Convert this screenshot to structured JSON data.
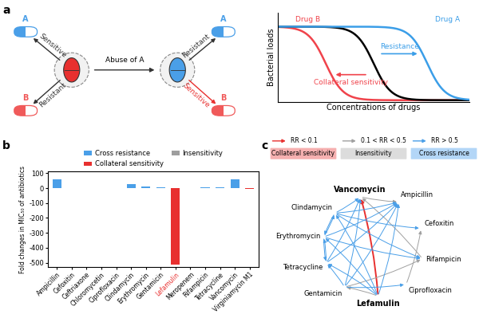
{
  "panel_labels": [
    "a",
    "b",
    "c"
  ],
  "panel_a": {
    "drugs": [
      {
        "name": "A",
        "color": "#4a9fe8"
      },
      {
        "name": "B",
        "color": "#f05a5a"
      }
    ],
    "before": {
      "cell_color": "#e8302f",
      "responses": [
        "Sensitive",
        "Resistant"
      ],
      "arrow_colors": [
        "#333333",
        "#333333"
      ]
    },
    "abuse": "Abuse of A",
    "after": {
      "cell_color": "#4a9fe8",
      "responses": [
        "Resistant",
        "Sensitive"
      ],
      "arrow_colors": [
        "#333333",
        "#e8302f"
      ]
    },
    "plot": {
      "xlabel": "Concentrations of drugs",
      "ylabel": "Bacterial loads",
      "curves": [
        {
          "name": "Drug B",
          "color": "#f0434b"
        },
        {
          "color": "#000000"
        },
        {
          "name": "Drug A",
          "color": "#3b9ee8"
        }
      ],
      "arrows": [
        {
          "text": "Resistance",
          "color": "#3b9ee8"
        },
        {
          "text": "Collateral sensitivity",
          "color": "#f0434b"
        }
      ]
    }
  },
  "chart_data": {
    "type": "bar",
    "ylabel": "Fold changes in MIC₅₀ of antibiotics",
    "categories": [
      "Ampicillin",
      "Cefoxitin",
      "Ceftriaxone",
      "Chloromycetin",
      "Ciprofloxacin",
      "Clindamycin",
      "Erythromycin",
      "Gentamicin",
      "Lefamulin",
      "Meropenem",
      "Rifampicin",
      "Tetracycline",
      "Vancomycin",
      "Virginiamycin M1"
    ],
    "values": [
      60,
      2,
      1,
      2,
      1,
      28,
      10,
      4,
      -512,
      1,
      6,
      8,
      60,
      -4
    ],
    "colors": [
      "#4a9fe8",
      "#4a9fe8",
      "#9e9e9e",
      "#4a9fe8",
      "#9e9e9e",
      "#4a9fe8",
      "#4a9fe8",
      "#4a9fe8",
      "#e8302f",
      "#9e9e9e",
      "#4a9fe8",
      "#4a9fe8",
      "#4a9fe8",
      "#e8302f"
    ],
    "ylim": [
      -530,
      110
    ],
    "yticks": [
      -500,
      -400,
      -300,
      -200,
      -100,
      0,
      100
    ],
    "legend": "lower center",
    "legend_entries": [
      {
        "name": "Cross resistance",
        "color": "#4a9fe8"
      },
      {
        "name": "Collateral sensitivity",
        "color": "#e8302f"
      },
      {
        "name": "Insensitivity",
        "color": "#9e9e9e"
      }
    ]
  },
  "panel_c": {
    "edge_kinds": [
      {
        "rule": "RR < 0.1",
        "label": "Collateral sensitivity",
        "color": "#e8302f"
      },
      {
        "rule": "0.1 < RR < 0.5",
        "label": "Insensitivity",
        "color": "#a0a0a0"
      },
      {
        "rule": "RR > 0.5",
        "label": "Cross resistance",
        "color": "#4a9fe8"
      }
    ],
    "nodes": [
      "Vancomycin",
      "Ampicillin",
      "Cefoxitin",
      "Rifampicin",
      "Ciprofloxacin",
      "Lefamulin",
      "Gentamicin",
      "Tetracycline",
      "Erythromycin",
      "Clindamycin"
    ],
    "edges": [
      {
        "from": "Lefamulin",
        "to": "Vancomycin",
        "kind": 0
      },
      {
        "from": "Vancomycin",
        "to": "Ampicillin",
        "kind": 1
      },
      {
        "from": "Rifampicin",
        "to": "Vancomycin",
        "kind": 1
      },
      {
        "from": "Lefamulin",
        "to": "Gentamicin",
        "kind": 1
      },
      {
        "from": "Gentamicin",
        "to": "Rifampicin",
        "kind": 1
      },
      {
        "from": "Ciprofloxacin",
        "to": "Cefoxitin",
        "kind": 1
      },
      {
        "from": "Clindamycin",
        "to": "Ampicillin",
        "kind": 2
      },
      {
        "from": "Erythromycin",
        "to": "Ampicillin",
        "kind": 2
      },
      {
        "from": "Gentamicin",
        "to": "Ampicillin",
        "kind": 2
      },
      {
        "from": "Tetracycline",
        "to": "Ampicillin",
        "kind": 2
      },
      {
        "from": "Clindamycin",
        "to": "Erythromycin",
        "kind": 2
      },
      {
        "from": "Erythromycin",
        "to": "Clindamycin",
        "kind": 2
      },
      {
        "from": "Erythromycin",
        "to": "Tetracycline",
        "kind": 2
      },
      {
        "from": "Tetracycline",
        "to": "Erythromycin",
        "kind": 2
      },
      {
        "from": "Gentamicin",
        "to": "Tetracycline",
        "kind": 2
      },
      {
        "from": "Clindamycin",
        "to": "Cefoxitin",
        "kind": 2
      },
      {
        "from": "Erythromycin",
        "to": "Rifampicin",
        "kind": 2
      },
      {
        "from": "Clindamycin",
        "to": "Rifampicin",
        "kind": 2
      },
      {
        "from": "Gentamicin",
        "to": "Ciprofloxacin",
        "kind": 2
      },
      {
        "from": "Lefamulin",
        "to": "Erythromycin",
        "kind": 2
      },
      {
        "from": "Lefamulin",
        "to": "Clindamycin",
        "kind": 2
      },
      {
        "from": "Lefamulin",
        "to": "Tetracycline",
        "kind": 2
      },
      {
        "from": "Lefamulin",
        "to": "Ampicillin",
        "kind": 2
      },
      {
        "from": "Gentamicin",
        "to": "Vancomycin",
        "kind": 2
      },
      {
        "from": "Clindamycin",
        "to": "Vancomycin",
        "kind": 2
      },
      {
        "from": "Tetracycline",
        "to": "Vancomycin",
        "kind": 2
      }
    ]
  }
}
